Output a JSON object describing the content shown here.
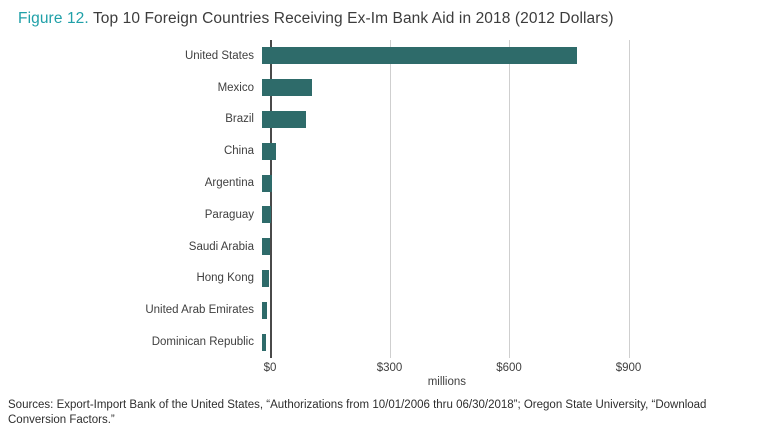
{
  "header": {
    "figure_label": "Figure 12.",
    "title": "Top 10 Foreign Countries Receiving Ex-Im Bank Aid in 2018 (2012 Dollars)"
  },
  "colors": {
    "bar": "#2e6b6a",
    "figure_label": "#1fa0a8",
    "gridline": "#cfcfcf",
    "axis": "#4a4a4a"
  },
  "chart_data": {
    "type": "bar",
    "orientation": "horizontal",
    "title": "Top 10 Foreign Countries Receiving Ex-Im Bank Aid in 2018 (2012 Dollars)",
    "categories": [
      "United States",
      "Mexico",
      "Brazil",
      "China",
      "Argentina",
      "Paraguay",
      "Saudi Arabia",
      "Hong Kong",
      "United Arab Emirates",
      "Dominican Republic"
    ],
    "values": [
      790,
      125,
      110,
      35,
      25,
      22,
      20,
      17,
      13,
      11
    ],
    "unit": "millions of 2012 dollars",
    "xlabel": "millions",
    "ylabel": "",
    "xlim": [
      0,
      1200
    ],
    "gridlines": [
      300,
      600,
      900
    ],
    "ticks": [
      {
        "value": 0,
        "label": "$0"
      },
      {
        "value": 300,
        "label": "$300"
      },
      {
        "value": 600,
        "label": "$600"
      },
      {
        "value": 900,
        "label": "$900"
      }
    ],
    "grid": "vertical-only",
    "legend": "none"
  },
  "footer": {
    "source": "Sources: Export-Import Bank of the United States, “Authorizations from 10/01/2006 thru 06/30/2018”; Oregon State University, “Download Conversion Factors.”"
  }
}
